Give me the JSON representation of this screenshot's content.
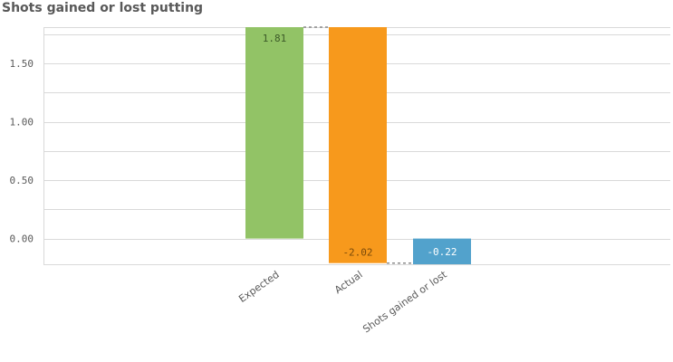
{
  "chart_data": {
    "type": "waterfall",
    "title": "Shots gained or lost putting",
    "categories": [
      "Expected",
      "Actual",
      "Shots gained or lost"
    ],
    "values": [
      1.81,
      -2.02,
      -0.22
    ],
    "labels": [
      "1.81",
      "-2.02",
      "-0.22"
    ],
    "colors": [
      "#92c366",
      "#f7991c",
      "#52a2cc"
    ],
    "label_colors": [
      "#3c5a28",
      "#7a4a0a",
      "#ffffff"
    ],
    "y_ticks": [
      "0.00",
      "0.50",
      "1.00",
      "1.50"
    ],
    "y_tick_values": [
      0,
      0.5,
      1.0,
      1.5
    ],
    "ylim": [
      -0.22,
      1.81
    ],
    "grid": true
  }
}
